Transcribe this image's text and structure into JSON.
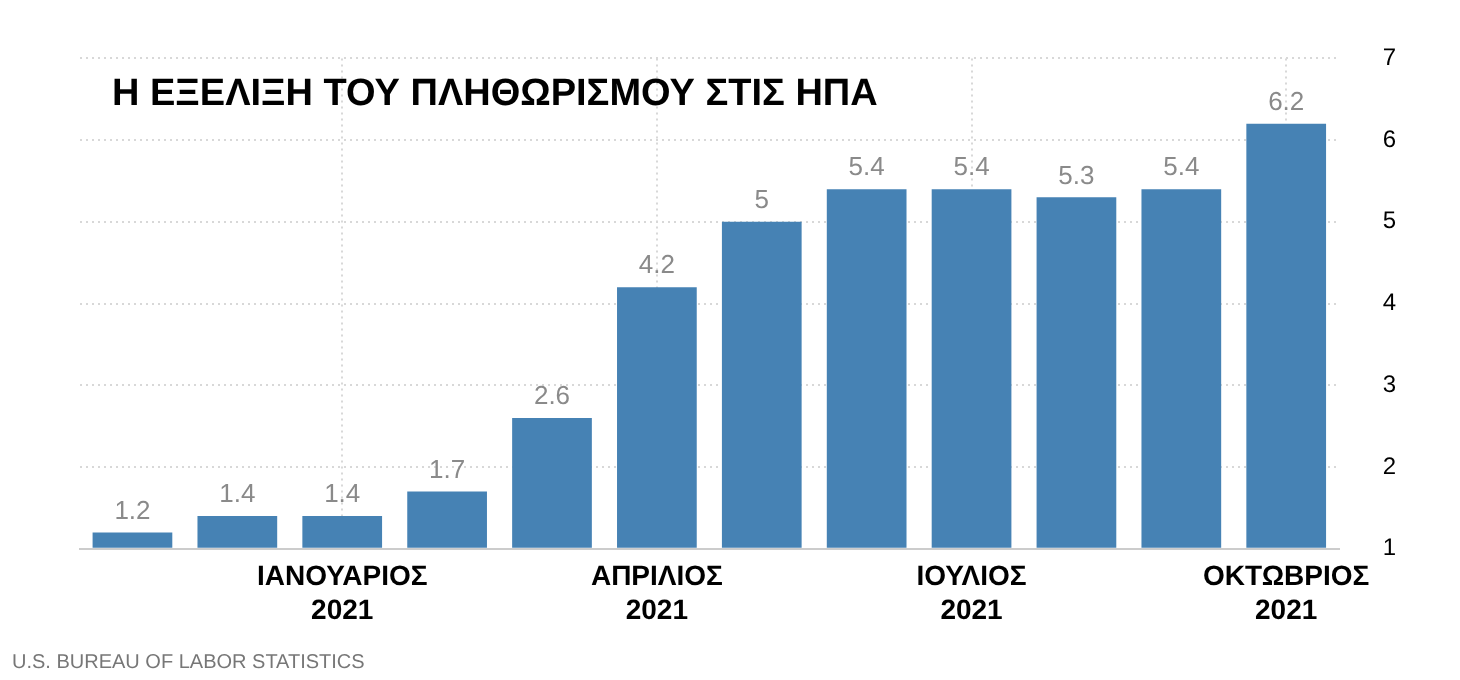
{
  "chart_data": {
    "type": "bar",
    "title": "Η ΕΞΕΛΙΞΗ ΤΟΥ ΠΛΗΘΩΡΙΣΜΟΥ ΣΤΙΣ ΗΠΑ",
    "categories": [
      null,
      null,
      "ΙΑΝΟΥΑΡΙΟΣ 2021",
      null,
      null,
      "ΑΠΡΙΛΙΟΣ 2021",
      null,
      null,
      "ΙΟΥΛΙΟΣ 2021",
      null,
      null,
      "ΟΚΤΩΒΡΙΟΣ 2021"
    ],
    "values": [
      1.2,
      1.4,
      1.4,
      1.7,
      2.6,
      4.2,
      5,
      5.4,
      5.4,
      5.3,
      5.4,
      6.2
    ],
    "color": "#4682b4",
    "ylim": [
      1,
      7
    ],
    "yticks": [
      1,
      2,
      3,
      4,
      5,
      6,
      7
    ],
    "grid": true,
    "data_labels": true,
    "annotations": [
      "U.S. BUREAU OF LABOR STATISTICS"
    ]
  }
}
